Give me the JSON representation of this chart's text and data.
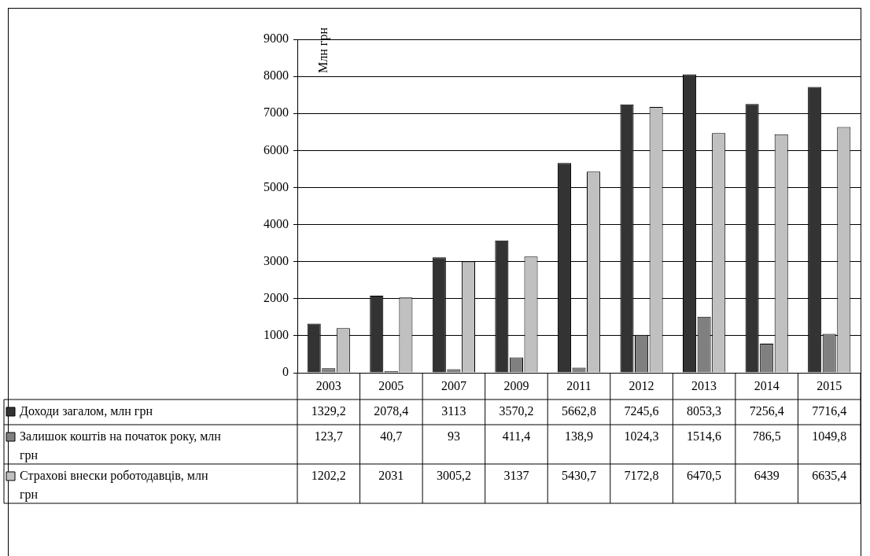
{
  "chart_data": {
    "type": "bar",
    "ylabel": "Млн грн",
    "categories": [
      "2003",
      "2005",
      "2007",
      "2009",
      "2011",
      "2012",
      "2013",
      "2014",
      "2015"
    ],
    "series": [
      {
        "name": "Доходи загалом, млн грн",
        "color": "#333333",
        "values": [
          1329.2,
          2078.4,
          3113,
          3570.2,
          5662.8,
          7245.6,
          8053.3,
          7256.4,
          7716.4
        ],
        "value_labels": [
          "1329,2",
          "2078,4",
          "3113",
          "3570,2",
          "5662,8",
          "7245,6",
          "8053,3",
          "7256,4",
          "7716,4"
        ]
      },
      {
        "name": "Залишок коштів на початок року, млн грн",
        "color": "#808080",
        "values": [
          123.7,
          40.7,
          93,
          411.4,
          138.9,
          1024.3,
          1514.6,
          786.5,
          1049.8
        ],
        "value_labels": [
          "123,7",
          "40,7",
          "93",
          "411,4",
          "138,9",
          "1024,3",
          "1514,6",
          "786,5",
          "1049,8"
        ]
      },
      {
        "name": "Страхові внески роботодавців, млн грн",
        "color": "#c0c0c0",
        "values": [
          1202.2,
          2031,
          3005.2,
          3137,
          5430.7,
          7172.8,
          6470.5,
          6439,
          6635.4
        ],
        "value_labels": [
          "1202,2",
          "2031",
          "3005,2",
          "3137",
          "5430,7",
          "7172,8",
          "6470,5",
          "6439",
          "6635,4"
        ]
      }
    ],
    "ylim": [
      0,
      9000
    ],
    "yticks": [
      0,
      1000,
      2000,
      3000,
      4000,
      5000,
      6000,
      7000,
      8000,
      9000
    ],
    "grid": "y",
    "legend": "bottom left"
  }
}
